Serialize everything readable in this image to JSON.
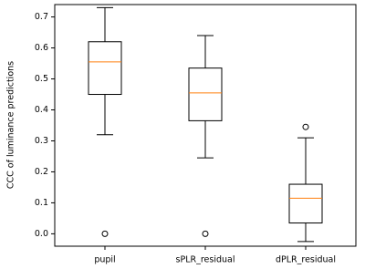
{
  "chart_data": {
    "type": "box",
    "y_label": "CCC of luminance predictions",
    "categories": [
      "pupil",
      "sPLR_residual",
      "dPLR_residual"
    ],
    "boxes": [
      {
        "whisker_low": 0.32,
        "q1": 0.45,
        "median": 0.555,
        "q3": 0.62,
        "whisker_high": 0.73,
        "outliers": [
          0.0
        ]
      },
      {
        "whisker_low": 0.245,
        "q1": 0.365,
        "median": 0.455,
        "q3": 0.535,
        "whisker_high": 0.64,
        "outliers": [
          0.0
        ]
      },
      {
        "whisker_low": -0.025,
        "q1": 0.035,
        "median": 0.115,
        "q3": 0.16,
        "whisker_high": 0.31,
        "outliers": [
          0.345
        ]
      }
    ],
    "box_color": "#000000",
    "median_color": "#ff7f0e",
    "ylim": [
      -0.04,
      0.74
    ],
    "yticks": [
      {
        "value": 0,
        "label": "0.0"
      },
      0.1,
      0.2,
      0.3,
      0.4,
      0.5,
      0.6,
      0.7
    ]
  }
}
